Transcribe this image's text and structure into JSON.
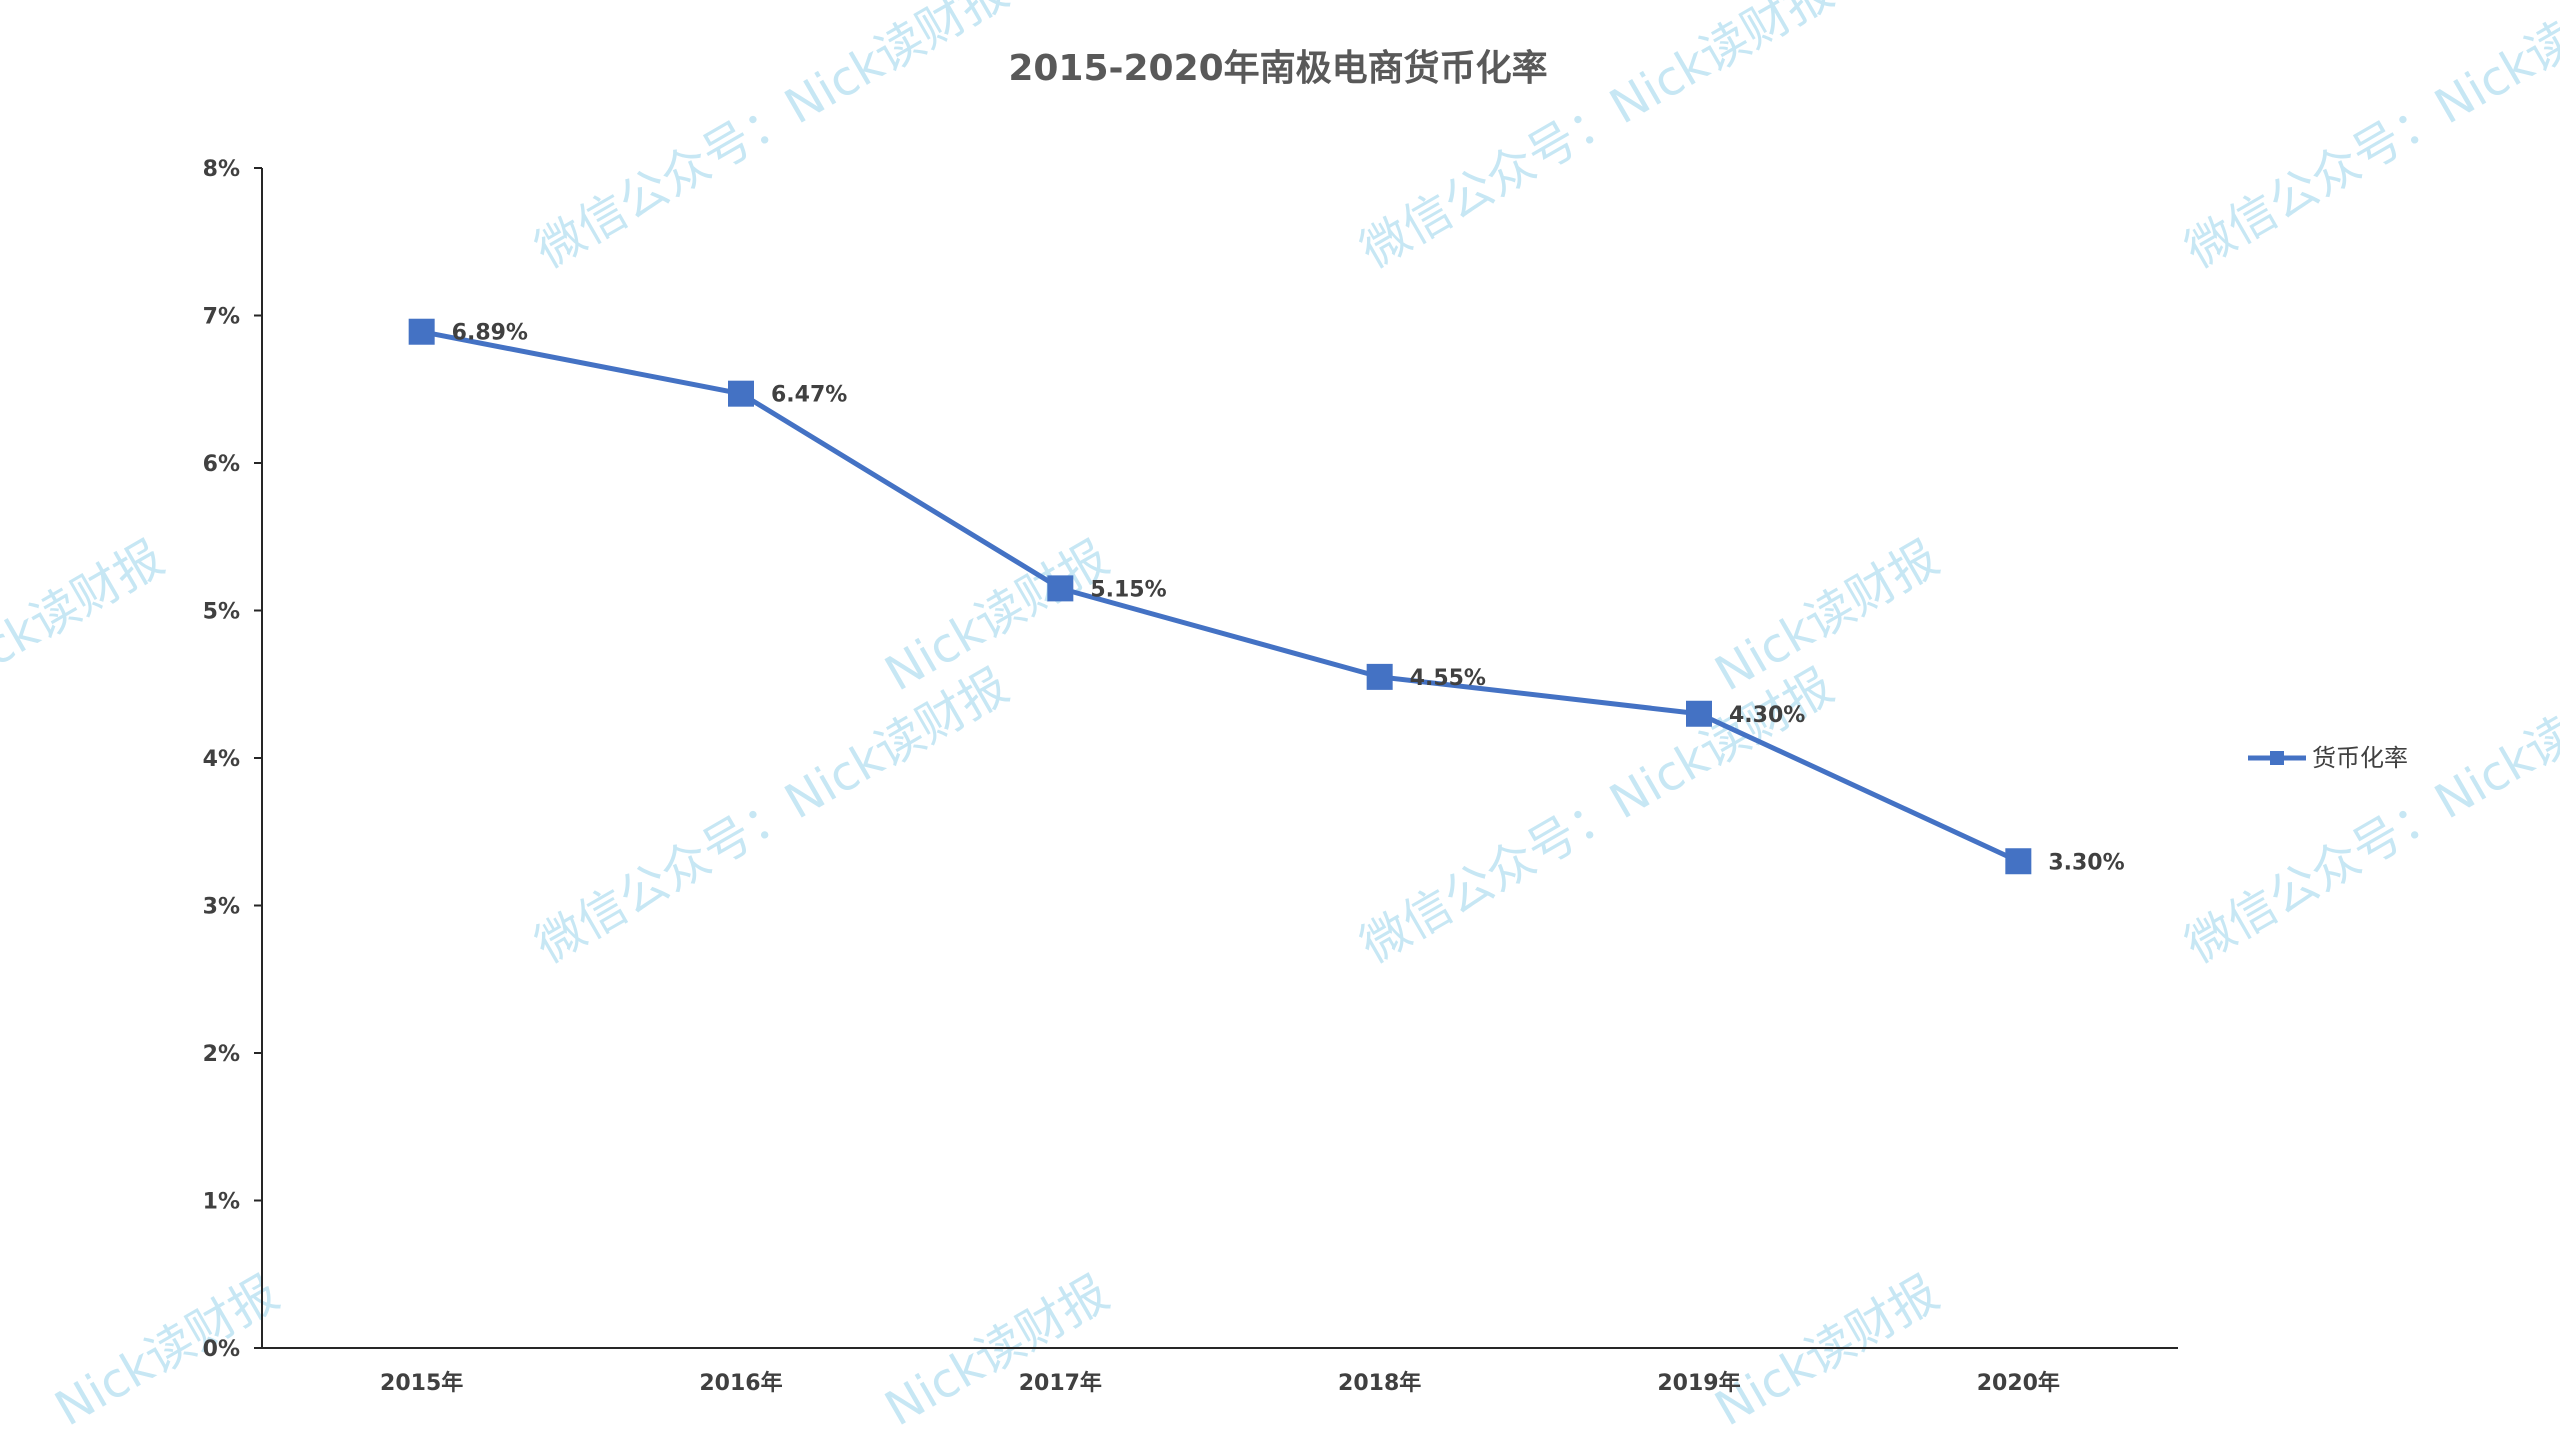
{
  "watermarks": {
    "line_a": "微信公众号：Nick读财报",
    "line_b": "Nick读财报"
  },
  "chart_data": {
    "type": "line",
    "title": "2015-2020年南极电商货币化率",
    "xlabel": "",
    "ylabel": "",
    "categories": [
      "2015年",
      "2016年",
      "2017年",
      "2018年",
      "2019年",
      "2020年"
    ],
    "series": [
      {
        "name": "货币化率",
        "values": [
          6.89,
          6.47,
          5.15,
          4.55,
          4.3,
          3.3
        ],
        "labels": [
          "6.89%",
          "6.47%",
          "5.15%",
          "4.55%",
          "4.30%",
          "3.30%"
        ],
        "color": "#4472c4",
        "marker": "square"
      }
    ],
    "ylim": [
      0,
      8
    ],
    "yticks": [
      0,
      1,
      2,
      3,
      4,
      5,
      6,
      7,
      8
    ],
    "ytick_labels": [
      "0%",
      "1%",
      "2%",
      "3%",
      "4%",
      "5%",
      "6%",
      "7%",
      "8%"
    ],
    "grid": false,
    "legend": "right"
  }
}
